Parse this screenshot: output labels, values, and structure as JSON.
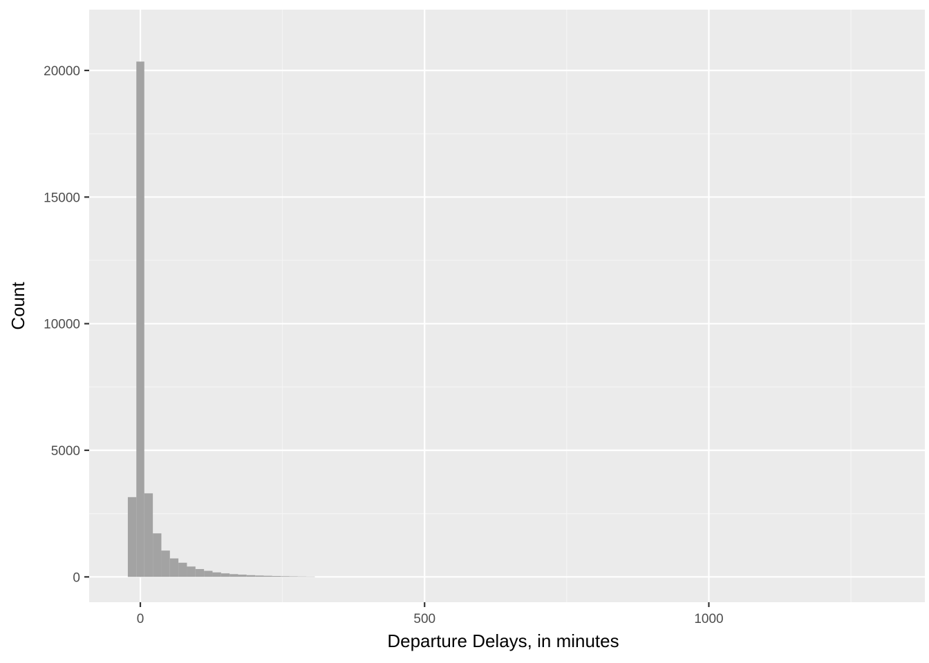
{
  "chart_data": {
    "type": "bar",
    "subtype": "histogram",
    "title": "",
    "xlabel": "Departure Delays, in minutes",
    "ylabel": "Count",
    "xlim": [
      -90,
      1380
    ],
    "ylim": [
      -1000,
      22400
    ],
    "x_ticks": [
      0,
      500,
      1000
    ],
    "x_tick_labels": [
      "0",
      "500",
      "1000"
    ],
    "x_minor_ticks": [
      250,
      750,
      1250
    ],
    "y_ticks": [
      0,
      5000,
      10000,
      15000,
      20000
    ],
    "y_tick_labels": [
      "0",
      "5000",
      "10000",
      "15000",
      "20000"
    ],
    "y_minor_ticks": [
      2500,
      7500,
      12500,
      17500
    ],
    "grid": true,
    "legend": "none",
    "colors": {
      "panel_background": "#ebebeb",
      "grid_major": "#ffffff",
      "grid_minor": "#f5f5f5",
      "bar_fill": "#a3a3a3",
      "tick_mark": "#333333"
    },
    "bins": [
      {
        "x0": -22,
        "x1": -7,
        "count": 3150
      },
      {
        "x0": -7,
        "x1": 7,
        "count": 20350
      },
      {
        "x0": 7,
        "x1": 22,
        "count": 3300
      },
      {
        "x0": 22,
        "x1": 37,
        "count": 1720
      },
      {
        "x0": 37,
        "x1": 52,
        "count": 1040
      },
      {
        "x0": 52,
        "x1": 67,
        "count": 730
      },
      {
        "x0": 67,
        "x1": 82,
        "count": 560
      },
      {
        "x0": 82,
        "x1": 97,
        "count": 410
      },
      {
        "x0": 97,
        "x1": 112,
        "count": 310
      },
      {
        "x0": 112,
        "x1": 127,
        "count": 240
      },
      {
        "x0": 127,
        "x1": 142,
        "count": 180
      },
      {
        "x0": 142,
        "x1": 157,
        "count": 140
      },
      {
        "x0": 157,
        "x1": 172,
        "count": 110
      },
      {
        "x0": 172,
        "x1": 187,
        "count": 90
      },
      {
        "x0": 187,
        "x1": 202,
        "count": 70
      },
      {
        "x0": 202,
        "x1": 217,
        "count": 55
      },
      {
        "x0": 217,
        "x1": 232,
        "count": 45
      },
      {
        "x0": 232,
        "x1": 247,
        "count": 35
      },
      {
        "x0": 247,
        "x1": 262,
        "count": 28
      },
      {
        "x0": 262,
        "x1": 277,
        "count": 22
      },
      {
        "x0": 277,
        "x1": 292,
        "count": 17
      },
      {
        "x0": 292,
        "x1": 307,
        "count": 13
      }
    ]
  }
}
